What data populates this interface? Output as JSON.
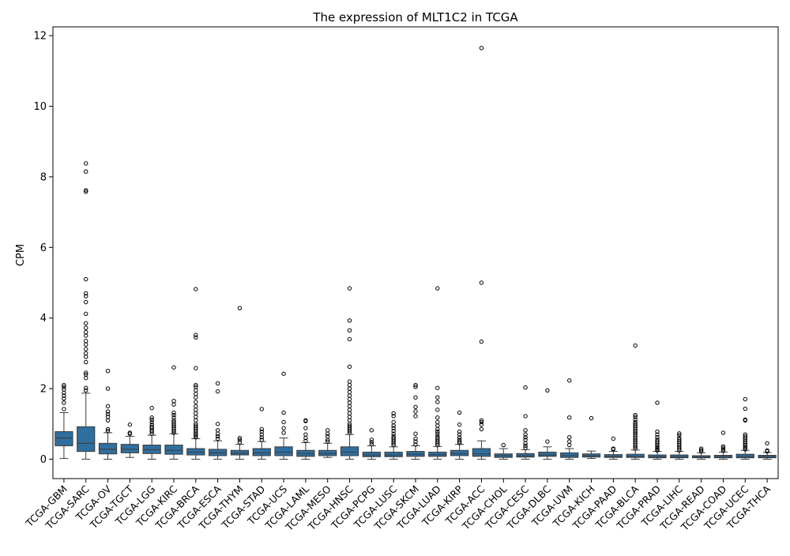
{
  "chart_data": {
    "type": "box",
    "title": "The expression of MLT1C2 in TCGA",
    "xlabel": "",
    "ylabel": "CPM",
    "ylim": [
      -0.55,
      12.25
    ],
    "yticks": [
      0,
      2,
      4,
      6,
      8,
      10,
      12
    ],
    "grid": false,
    "box_color": "#2f6f9f",
    "edge_color": "#3a3a3a",
    "categories": [
      "TCGA-GBM",
      "TCGA-SARC",
      "TCGA-OV",
      "TCGA-TGCT",
      "TCGA-LGG",
      "TCGA-KIRC",
      "TCGA-BRCA",
      "TCGA-ESCA",
      "TCGA-THYM",
      "TCGA-STAD",
      "TCGA-UCS",
      "TCGA-LAML",
      "TCGA-MESO",
      "TCGA-HNSC",
      "TCGA-PCPG",
      "TCGA-LUSC",
      "TCGA-SKCM",
      "TCGA-LUAD",
      "TCGA-KIRP",
      "TCGA-ACC",
      "TCGA-CHOL",
      "TCGA-CESC",
      "TCGA-DLBC",
      "TCGA-UVM",
      "TCGA-KICH",
      "TCGA-PAAD",
      "TCGA-BLCA",
      "TCGA-PRAD",
      "TCGA-LIHC",
      "TCGA-READ",
      "TCGA-COAD",
      "TCGA-UCEC",
      "TCGA-THCA"
    ],
    "boxes": [
      {
        "min": 0.02,
        "q1": 0.38,
        "median": 0.6,
        "q3": 0.78,
        "max": 1.32,
        "outliers": [
          1.42,
          1.6,
          1.72,
          1.8,
          1.88,
          1.98,
          2.05,
          2.1
        ]
      },
      {
        "min": 0.0,
        "q1": 0.22,
        "median": 0.45,
        "q3": 0.92,
        "max": 1.87,
        "outliers": [
          1.95,
          2.02,
          2.3,
          2.4,
          2.45,
          2.75,
          2.9,
          3.0,
          3.12,
          3.25,
          3.35,
          3.5,
          3.6,
          3.72,
          3.85,
          4.12,
          4.45,
          4.62,
          4.7,
          5.1,
          7.58,
          7.62,
          8.15,
          8.38
        ]
      },
      {
        "min": 0.0,
        "q1": 0.15,
        "median": 0.28,
        "q3": 0.45,
        "max": 0.75,
        "outliers": [
          0.8,
          0.85,
          1.1,
          1.2,
          1.28,
          1.35,
          1.5,
          2.0,
          2.5
        ]
      },
      {
        "min": 0.05,
        "q1": 0.18,
        "median": 0.28,
        "q3": 0.42,
        "max": 0.65,
        "outliers": [
          0.72,
          0.75,
          0.98
        ]
      },
      {
        "min": 0.0,
        "q1": 0.16,
        "median": 0.27,
        "q3": 0.4,
        "max": 0.68,
        "outliers": [
          0.72,
          0.78,
          0.82,
          0.88,
          0.92,
          0.98,
          1.05,
          1.12,
          1.18,
          1.45
        ]
      },
      {
        "min": 0.0,
        "q1": 0.14,
        "median": 0.25,
        "q3": 0.4,
        "max": 0.72,
        "outliers": [
          0.75,
          0.8,
          0.85,
          0.9,
          0.95,
          1.0,
          1.05,
          1.1,
          1.18,
          1.25,
          1.32,
          1.55,
          1.65,
          2.6
        ]
      },
      {
        "min": 0.0,
        "q1": 0.12,
        "median": 0.2,
        "q3": 0.3,
        "max": 0.58,
        "outliers": [
          0.62,
          0.66,
          0.7,
          0.75,
          0.8,
          0.85,
          0.9,
          0.95,
          1.0,
          1.1,
          1.2,
          1.3,
          1.4,
          1.5,
          1.62,
          1.75,
          1.85,
          1.95,
          2.05,
          2.1,
          2.58,
          3.45,
          3.52,
          4.82
        ]
      },
      {
        "min": 0.0,
        "q1": 0.1,
        "median": 0.18,
        "q3": 0.28,
        "max": 0.52,
        "outliers": [
          0.58,
          0.65,
          0.72,
          0.82,
          1.0,
          1.92,
          2.15
        ]
      },
      {
        "min": 0.0,
        "q1": 0.12,
        "median": 0.17,
        "q3": 0.25,
        "max": 0.42,
        "outliers": [
          0.48,
          0.55,
          0.6,
          4.28
        ]
      },
      {
        "min": 0.0,
        "q1": 0.1,
        "median": 0.18,
        "q3": 0.3,
        "max": 0.5,
        "outliers": [
          0.55,
          0.62,
          0.7,
          0.78,
          0.85,
          1.42
        ]
      },
      {
        "min": 0.0,
        "q1": 0.1,
        "median": 0.2,
        "q3": 0.35,
        "max": 0.6,
        "outliers": [
          0.75,
          0.88,
          1.05,
          1.32,
          2.42
        ]
      },
      {
        "min": 0.0,
        "q1": 0.08,
        "median": 0.16,
        "q3": 0.25,
        "max": 0.47,
        "outliers": [
          0.52,
          0.6,
          0.7,
          0.88,
          1.08,
          1.1
        ]
      },
      {
        "min": 0.05,
        "q1": 0.1,
        "median": 0.16,
        "q3": 0.25,
        "max": 0.45,
        "outliers": [
          0.5,
          0.55,
          0.65,
          0.72,
          0.82
        ]
      },
      {
        "min": 0.0,
        "q1": 0.1,
        "median": 0.2,
        "q3": 0.35,
        "max": 0.7,
        "outliers": [
          0.75,
          0.8,
          0.85,
          0.9,
          0.95,
          1.0,
          1.1,
          1.2,
          1.3,
          1.4,
          1.5,
          1.6,
          1.7,
          1.8,
          1.9,
          2.0,
          2.1,
          2.2,
          2.62,
          3.4,
          3.65,
          3.93,
          4.84
        ]
      },
      {
        "min": 0.0,
        "q1": 0.07,
        "median": 0.12,
        "q3": 0.2,
        "max": 0.38,
        "outliers": [
          0.42,
          0.48,
          0.55,
          0.82
        ]
      },
      {
        "min": 0.0,
        "q1": 0.07,
        "median": 0.12,
        "q3": 0.2,
        "max": 0.35,
        "outliers": [
          0.4,
          0.45,
          0.5,
          0.55,
          0.6,
          0.65,
          0.72,
          0.8,
          0.88,
          0.95,
          1.05,
          1.22,
          1.3
        ]
      },
      {
        "min": 0.0,
        "q1": 0.08,
        "median": 0.14,
        "q3": 0.22,
        "max": 0.38,
        "outliers": [
          0.42,
          0.5,
          0.58,
          0.72,
          1.22,
          1.35,
          1.48,
          1.75,
          2.05,
          2.1
        ]
      },
      {
        "min": 0.0,
        "q1": 0.08,
        "median": 0.13,
        "q3": 0.2,
        "max": 0.36,
        "outliers": [
          0.4,
          0.45,
          0.5,
          0.55,
          0.6,
          0.65,
          0.72,
          0.78,
          0.85,
          0.95,
          1.05,
          1.18,
          1.4,
          1.62,
          1.75,
          2.02,
          4.84
        ]
      },
      {
        "min": 0.0,
        "q1": 0.1,
        "median": 0.16,
        "q3": 0.25,
        "max": 0.42,
        "outliers": [
          0.46,
          0.5,
          0.55,
          0.62,
          0.7,
          0.78,
          0.98,
          1.32
        ]
      },
      {
        "min": 0.0,
        "q1": 0.08,
        "median": 0.15,
        "q3": 0.3,
        "max": 0.52,
        "outliers": [
          0.85,
          0.98,
          1.05,
          1.1,
          3.33,
          5.0,
          11.65
        ]
      },
      {
        "min": 0.0,
        "q1": 0.05,
        "median": 0.1,
        "q3": 0.15,
        "max": 0.3,
        "outliers": [
          0.4
        ]
      },
      {
        "min": 0.0,
        "q1": 0.06,
        "median": 0.1,
        "q3": 0.16,
        "max": 0.27,
        "outliers": [
          0.32,
          0.38,
          0.45,
          0.55,
          0.62,
          0.7,
          0.82,
          1.22,
          2.03
        ]
      },
      {
        "min": 0.0,
        "q1": 0.08,
        "median": 0.12,
        "q3": 0.2,
        "max": 0.35,
        "outliers": [
          0.5,
          1.95
        ]
      },
      {
        "min": 0.0,
        "q1": 0.05,
        "median": 0.1,
        "q3": 0.18,
        "max": 0.3,
        "outliers": [
          0.4,
          0.5,
          0.62,
          1.18,
          2.23
        ]
      },
      {
        "min": 0.02,
        "q1": 0.06,
        "median": 0.1,
        "q3": 0.15,
        "max": 0.23,
        "outliers": [
          1.16
        ]
      },
      {
        "min": 0.0,
        "q1": 0.05,
        "median": 0.08,
        "q3": 0.13,
        "max": 0.22,
        "outliers": [
          0.28,
          0.3,
          0.58
        ]
      },
      {
        "min": 0.0,
        "q1": 0.05,
        "median": 0.08,
        "q3": 0.14,
        "max": 0.26,
        "outliers": [
          0.3,
          0.35,
          0.4,
          0.45,
          0.5,
          0.55,
          0.6,
          0.65,
          0.7,
          0.75,
          0.8,
          0.85,
          0.9,
          0.95,
          1.0,
          1.05,
          1.12,
          1.2,
          1.25,
          3.22
        ]
      },
      {
        "min": 0.0,
        "q1": 0.04,
        "median": 0.07,
        "q3": 0.12,
        "max": 0.22,
        "outliers": [
          0.25,
          0.28,
          0.32,
          0.36,
          0.4,
          0.45,
          0.5,
          0.55,
          0.62,
          0.7,
          0.78,
          1.6
        ]
      },
      {
        "min": 0.0,
        "q1": 0.04,
        "median": 0.07,
        "q3": 0.12,
        "max": 0.22,
        "outliers": [
          0.25,
          0.3,
          0.35,
          0.4,
          0.45,
          0.5,
          0.55,
          0.6,
          0.68,
          0.73
        ]
      },
      {
        "min": 0.0,
        "q1": 0.04,
        "median": 0.06,
        "q3": 0.1,
        "max": 0.18,
        "outliers": [
          0.22,
          0.26,
          0.3
        ]
      },
      {
        "min": 0.0,
        "q1": 0.04,
        "median": 0.07,
        "q3": 0.11,
        "max": 0.2,
        "outliers": [
          0.24,
          0.28,
          0.32,
          0.36,
          0.75
        ]
      },
      {
        "min": 0.0,
        "q1": 0.04,
        "median": 0.08,
        "q3": 0.14,
        "max": 0.25,
        "outliers": [
          0.28,
          0.32,
          0.36,
          0.4,
          0.45,
          0.5,
          0.55,
          0.6,
          0.65,
          0.7,
          1.1,
          1.12,
          1.43,
          1.7
        ]
      },
      {
        "min": 0.0,
        "q1": 0.04,
        "median": 0.07,
        "q3": 0.11,
        "max": 0.19,
        "outliers": [
          0.22,
          0.25,
          0.45
        ]
      }
    ]
  }
}
